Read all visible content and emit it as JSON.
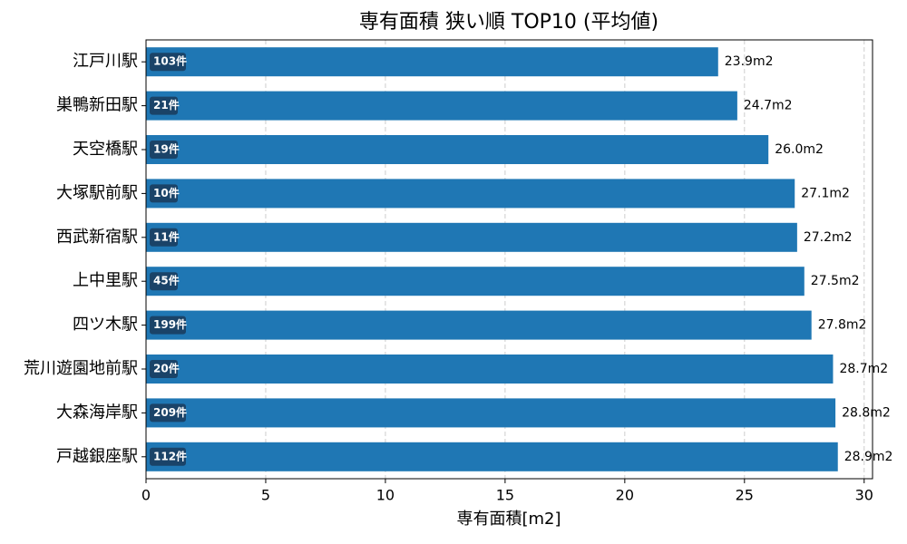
{
  "chart_data": {
    "type": "barh",
    "title": "専有面積 狭い順 TOP10 (平均値)",
    "xlabel": "専有面積[m2]",
    "categories": [
      "江戸川駅",
      "巣鴨新田駅",
      "天空橋駅",
      "大塚駅前駅",
      "西武新宿駅",
      "上中里駅",
      "四ツ木駅",
      "荒川遊園地前駅",
      "大森海岸駅",
      "戸越銀座駅"
    ],
    "values": [
      23.9,
      24.7,
      26.0,
      27.1,
      27.2,
      27.5,
      27.8,
      28.7,
      28.8,
      28.9
    ],
    "value_labels": [
      "23.9m2",
      "24.7m2",
      "26.0m2",
      "27.1m2",
      "27.2m2",
      "27.5m2",
      "27.8m2",
      "28.7m2",
      "28.8m2",
      "28.9m2"
    ],
    "count_labels": [
      "103件",
      "21件",
      "19件",
      "10件",
      "11件",
      "45件",
      "199件",
      "20件",
      "209件",
      "112件"
    ],
    "color": "#1f77b4",
    "xlim": [
      0,
      30.35
    ],
    "xticks": [
      0,
      5,
      10,
      15,
      20,
      25,
      30
    ],
    "grid": true
  }
}
